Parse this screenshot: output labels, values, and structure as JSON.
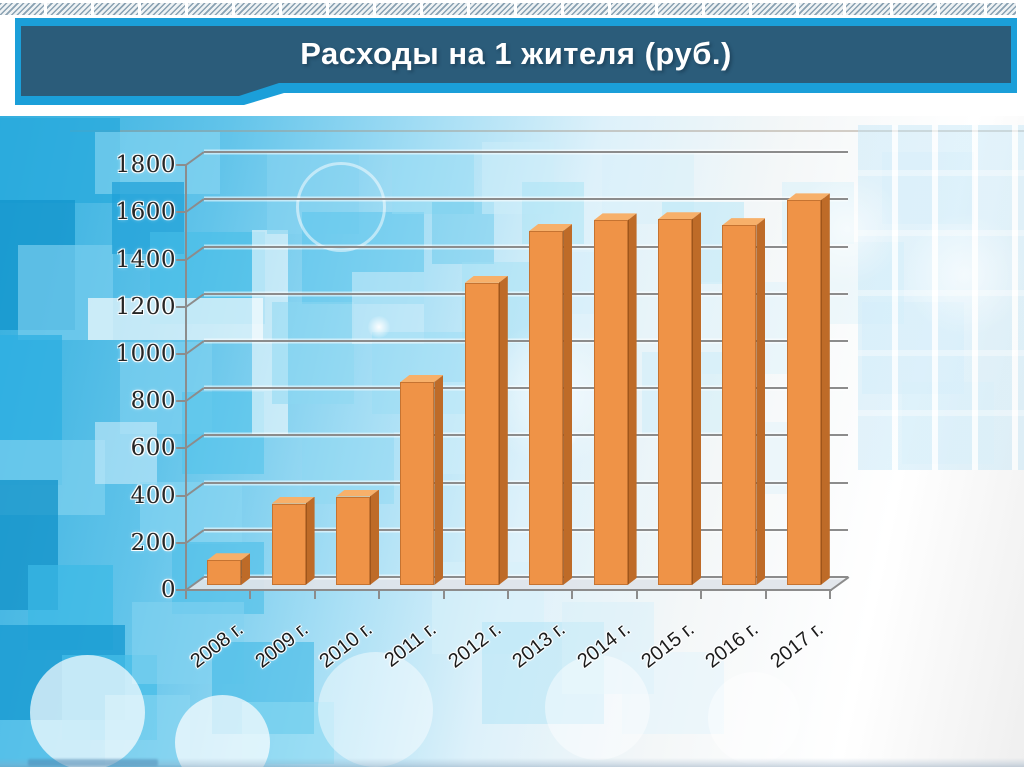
{
  "slide": {
    "title": "Расходы на 1 жителя (руб.)"
  },
  "chart_data": {
    "type": "bar",
    "variant": "3d-column",
    "title": "Расходы на 1 жителя (руб.)",
    "categories": [
      "2008 г.",
      "2009 г.",
      "2010 г.",
      "2011 г.",
      "2012 г.",
      "2013 г.",
      "2014 г.",
      "2015 г.",
      "2016 г.",
      "2017 г."
    ],
    "values": [
      105,
      345,
      375,
      860,
      1280,
      1500,
      1545,
      1550,
      1525,
      1630
    ],
    "values_are_estimates": true,
    "xlabel": "",
    "ylabel": "",
    "ylim": [
      0,
      1800
    ],
    "ytick_step": 200,
    "yticks": [
      0,
      200,
      400,
      600,
      800,
      1000,
      1200,
      1400,
      1600,
      1800
    ],
    "grid": true,
    "legend": false,
    "colors": {
      "bar_front": "#EF9347",
      "bar_top": "#F7B06A",
      "bar_side": "#BE6B28",
      "gridline": "#8C8C8C",
      "axis_label": "#262626"
    }
  },
  "theme": {
    "banner_fill": "#2B5C7A",
    "banner_border": "#1B9FD9",
    "hatch_color": "#89A1B2",
    "background_accent": "#33AEDE"
  }
}
